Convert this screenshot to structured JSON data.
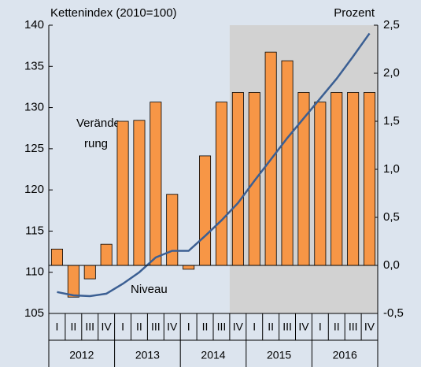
{
  "chart_data": {
    "type": "bar",
    "y_label": "Kettenindex (2010=100)",
    "y2_label": "Prozent",
    "annotation_bars": [
      "Verände-",
      "rung"
    ],
    "annotation_line": "Niveau",
    "categories": [
      "I",
      "II",
      "III",
      "IV",
      "I",
      "II",
      "III",
      "IV",
      "I",
      "II",
      "III",
      "IV",
      "I",
      "II",
      "III",
      "IV",
      "I",
      "II",
      "III",
      "IV"
    ],
    "x_groups": [
      "2012",
      "2013",
      "2014",
      "2015",
      "2016"
    ],
    "series": [
      {
        "type": "bar",
        "axis": "y2",
        "color": "#f79646",
        "values": [
          0.17,
          -0.33,
          -0.14,
          0.22,
          1.5,
          1.51,
          1.7,
          0.74,
          -0.04,
          1.14,
          1.7,
          1.8,
          1.8,
          2.22,
          2.13,
          1.8,
          1.7,
          1.8,
          1.8,
          1.8
        ]
      },
      {
        "type": "line",
        "color": "#3b5f93",
        "values": [
          107.6,
          107.2,
          107.1,
          107.4,
          108.6,
          110.0,
          111.8,
          112.6,
          112.6,
          114.4,
          116.3,
          118.4,
          121.1,
          123.7,
          126.3,
          128.7,
          131.1,
          133.5,
          136.2,
          139.0
        ]
      }
    ],
    "ylim": [
      105,
      140
    ],
    "yticks": [
      105,
      110,
      115,
      120,
      125,
      130,
      135,
      140
    ],
    "y2lim": [
      -0.5,
      2.5
    ],
    "y2ticks": [
      {
        "value": -0.5,
        "label": "-0,5"
      },
      {
        "value": 0,
        "label": "0,0"
      },
      {
        "value": 0.5,
        "label": "0,5"
      },
      {
        "value": 1,
        "label": "1,0"
      },
      {
        "value": 1.5,
        "label": "1,5"
      },
      {
        "value": 2,
        "label": "2,0"
      },
      {
        "value": 2.5,
        "label": "2,5"
      }
    ]
  }
}
